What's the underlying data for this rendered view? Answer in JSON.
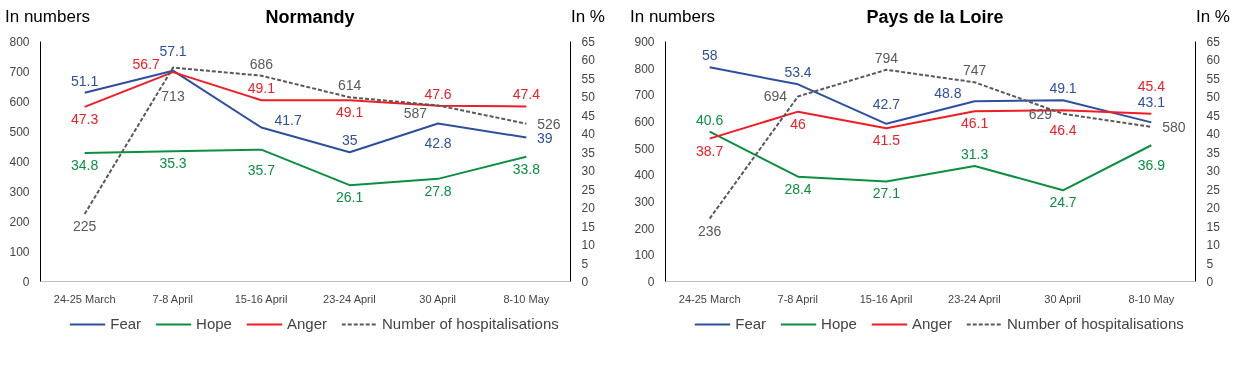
{
  "chart_data": [
    {
      "type": "line",
      "title": "Normandy",
      "ylabel": "In numbers",
      "y2label": "In %",
      "categories": [
        "24-25 March",
        "7-8 April",
        "15-16 April",
        "23-24 April",
        "30 April",
        "8-10 May"
      ],
      "series": [
        {
          "name": "Fear",
          "color": "#2e4fa0",
          "axis": "y2",
          "values": [
            51.1,
            57.1,
            41.7,
            35,
            42.8,
            39
          ]
        },
        {
          "name": "Hope",
          "color": "#0a9040",
          "axis": "y2",
          "values": [
            34.8,
            35.3,
            35.7,
            26.1,
            27.8,
            33.8
          ]
        },
        {
          "name": "Anger",
          "color": "#f21c24",
          "axis": "y2",
          "values": [
            47.3,
            56.7,
            49.1,
            49.1,
            47.6,
            47.4
          ]
        },
        {
          "name": "Number of hospitalisations",
          "color": "#595959",
          "axis": "y",
          "line_style": "dashed",
          "values": [
            225,
            713,
            686,
            614,
            587,
            526
          ]
        }
      ],
      "ylim": [
        0,
        800
      ],
      "yticks": [
        0,
        100,
        200,
        300,
        400,
        500,
        600,
        700,
        800
      ],
      "y2lim": [
        0,
        65
      ],
      "y2ticks": [
        0,
        5,
        10,
        15,
        20,
        25,
        30,
        35,
        40,
        45,
        50,
        55,
        60,
        65
      ],
      "data_labels": true,
      "legend": "bottom"
    },
    {
      "type": "line",
      "title": "Pays de la Loire",
      "ylabel": "In numbers",
      "y2label": "In %",
      "categories": [
        "24-25 March",
        "7-8 April",
        "15-16 April",
        "23-24 April",
        "30 April",
        "8-10 May"
      ],
      "series": [
        {
          "name": "Fear",
          "color": "#2e4fa0",
          "axis": "y2",
          "values": [
            58,
            53.4,
            42.7,
            48.8,
            49.1,
            43.1
          ]
        },
        {
          "name": "Hope",
          "color": "#0a9040",
          "axis": "y2",
          "values": [
            40.6,
            28.4,
            27.1,
            31.3,
            24.7,
            36.9
          ]
        },
        {
          "name": "Anger",
          "color": "#f21c24",
          "axis": "y2",
          "values": [
            38.7,
            46,
            41.5,
            46.1,
            46.4,
            45.4
          ]
        },
        {
          "name": "Number of hospitalisations",
          "color": "#595959",
          "axis": "y",
          "line_style": "dashed",
          "values": [
            236,
            694,
            794,
            747,
            629,
            580
          ]
        }
      ],
      "ylim": [
        0,
        900
      ],
      "yticks": [
        0,
        100,
        200,
        300,
        400,
        500,
        600,
        700,
        800,
        900
      ],
      "y2lim": [
        0,
        65
      ],
      "y2ticks": [
        0,
        5,
        10,
        15,
        20,
        25,
        30,
        35,
        40,
        45,
        50,
        55,
        60,
        65
      ],
      "data_labels": true,
      "legend": "bottom"
    }
  ]
}
